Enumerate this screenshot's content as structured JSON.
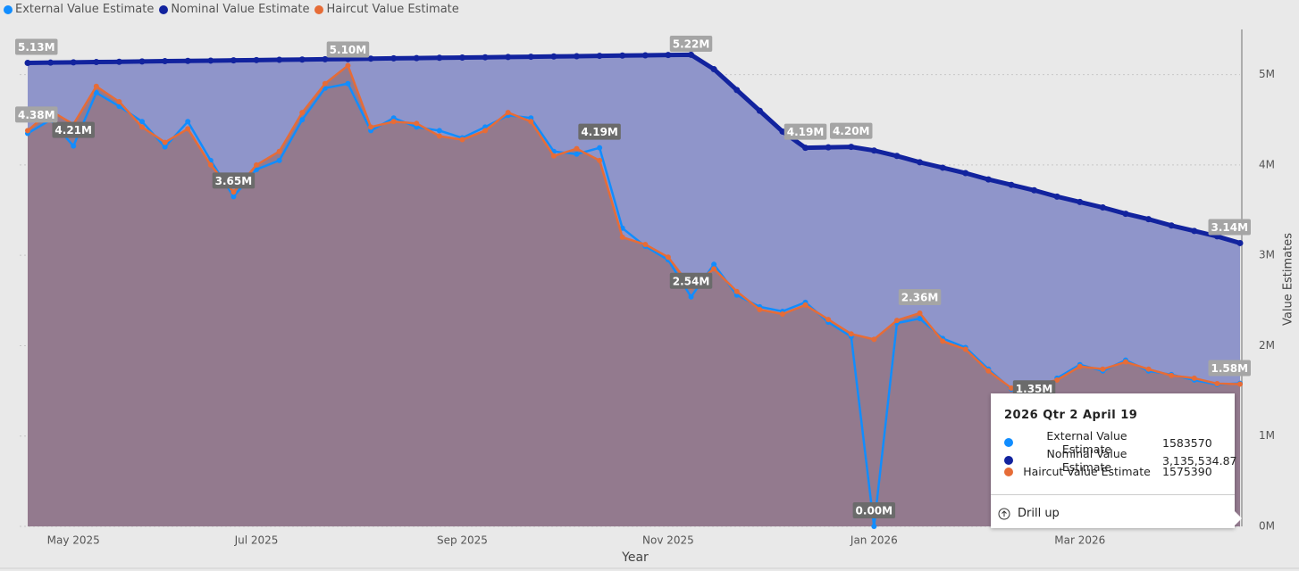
{
  "chart_data": {
    "type": "line",
    "x_label": "Year",
    "y_label": "Value Estimates",
    "categories": [
      null,
      null,
      "May 2025",
      null,
      null,
      null,
      null,
      null,
      null,
      null,
      "Jul 2025",
      null,
      null,
      null,
      null,
      null,
      null,
      null,
      null,
      "Sep 2025",
      null,
      null,
      null,
      null,
      null,
      null,
      null,
      null,
      "Nov 2025",
      null,
      null,
      null,
      null,
      null,
      null,
      null,
      null,
      "Jan 2026",
      null,
      null,
      null,
      null,
      null,
      null,
      null,
      null,
      "Mar 2026",
      null,
      null,
      null,
      null,
      null,
      null,
      null
    ],
    "ylim": [
      0,
      5500000
    ],
    "yticks": [
      {
        "value": 0,
        "label": "0M"
      },
      {
        "value": 1000000,
        "label": "1M"
      },
      {
        "value": 2000000,
        "label": "2M"
      },
      {
        "value": 3000000,
        "label": "3M"
      },
      {
        "value": 4000000,
        "label": "4M"
      },
      {
        "value": 5000000,
        "label": "5M"
      }
    ],
    "grid": true,
    "legend": "top-left",
    "series": [
      {
        "name": "External Value Estimate",
        "color": "#118DFF",
        "label_color": "#6b6b6b",
        "values": [
          4350000,
          4500000,
          4210000,
          4800000,
          4650000,
          4480000,
          4200000,
          4480000,
          4050000,
          3650000,
          3950000,
          4050000,
          4500000,
          4850000,
          4900000,
          4380000,
          4520000,
          4420000,
          4380000,
          4300000,
          4420000,
          4550000,
          4520000,
          4150000,
          4120000,
          4190000,
          3300000,
          3100000,
          2950000,
          2540000,
          2900000,
          2560000,
          2430000,
          2380000,
          2480000,
          2260000,
          2100000,
          0,
          2250000,
          2300000,
          2080000,
          1980000,
          1740000,
          1520000,
          1350000,
          1640000,
          1790000,
          1720000,
          1840000,
          1720000,
          1680000,
          1620000,
          1570000,
          1583570
        ],
        "value_labels": [
          null,
          null,
          "4.21M",
          null,
          null,
          null,
          null,
          null,
          null,
          "3.65M",
          null,
          null,
          null,
          null,
          null,
          null,
          null,
          null,
          null,
          null,
          null,
          null,
          null,
          null,
          null,
          "4.19M",
          null,
          null,
          null,
          "2.54M",
          null,
          null,
          null,
          null,
          null,
          null,
          null,
          "0.00M",
          null,
          null,
          null,
          null,
          null,
          null,
          "1.35M",
          null,
          null,
          null,
          null,
          null,
          null,
          null,
          null,
          null
        ]
      },
      {
        "name": "Nominal Value Estimate",
        "color": "#12239E",
        "label_color": "#a5a5a5",
        "area_color": "#8f95ca",
        "values": [
          5130000,
          5133000,
          5136000,
          5139000,
          5142000,
          5146000,
          5149000,
          5152000,
          5155000,
          5158000,
          5161000,
          5164000,
          5167000,
          5170000,
          5173000,
          5177000,
          5180000,
          5183000,
          5186000,
          5189000,
          5192000,
          5195000,
          5198000,
          5201000,
          5204000,
          5208000,
          5211000,
          5214000,
          5217000,
          5220000,
          5060000,
          4830000,
          4600000,
          4370000,
          4190000,
          4195000,
          4200000,
          4160000,
          4100000,
          4030000,
          3970000,
          3910000,
          3840000,
          3780000,
          3720000,
          3650000,
          3590000,
          3530000,
          3460000,
          3400000,
          3330000,
          3270000,
          3210000,
          3135534.87
        ],
        "value_labels": [
          "5.13M",
          null,
          null,
          null,
          null,
          null,
          null,
          null,
          null,
          null,
          null,
          null,
          null,
          null,
          null,
          null,
          null,
          null,
          null,
          null,
          null,
          null,
          null,
          null,
          null,
          null,
          null,
          null,
          null,
          "5.22M",
          null,
          null,
          null,
          null,
          "4.19M",
          null,
          "4.20M",
          null,
          null,
          null,
          null,
          null,
          null,
          null,
          null,
          null,
          null,
          null,
          null,
          null,
          null,
          null,
          null,
          "3.14M"
        ]
      },
      {
        "name": "Haircut Value Estimate",
        "color": "#E66C37",
        "label_color": "#a5a5a5",
        "area_color": "#937a8e",
        "values": [
          4380000,
          4600000,
          4450000,
          4870000,
          4700000,
          4420000,
          4250000,
          4400000,
          4000000,
          3700000,
          4000000,
          4150000,
          4580000,
          4900000,
          5100000,
          4420000,
          4480000,
          4460000,
          4320000,
          4280000,
          4380000,
          4580000,
          4480000,
          4100000,
          4180000,
          4050000,
          3200000,
          3120000,
          2980000,
          2650000,
          2850000,
          2600000,
          2400000,
          2350000,
          2450000,
          2290000,
          2130000,
          2070000,
          2280000,
          2360000,
          2050000,
          1960000,
          1720000,
          1530000,
          1560000,
          1620000,
          1770000,
          1740000,
          1820000,
          1740000,
          1670000,
          1640000,
          1580000,
          1575390
        ],
        "value_labels": [
          "4.38M",
          null,
          null,
          null,
          null,
          null,
          null,
          null,
          null,
          null,
          null,
          null,
          null,
          null,
          "5.10M",
          null,
          null,
          null,
          null,
          null,
          null,
          null,
          null,
          null,
          null,
          null,
          null,
          null,
          null,
          null,
          null,
          null,
          null,
          null,
          null,
          null,
          null,
          null,
          null,
          "2.36M",
          null,
          null,
          null,
          null,
          null,
          null,
          null,
          null,
          null,
          null,
          null,
          null,
          null,
          "1.58M"
        ]
      }
    ],
    "tooltip": {
      "title": "2026 Qtr 2 April 19",
      "nominal_value": "3,135,534.87",
      "action": "Drill up"
    }
  }
}
